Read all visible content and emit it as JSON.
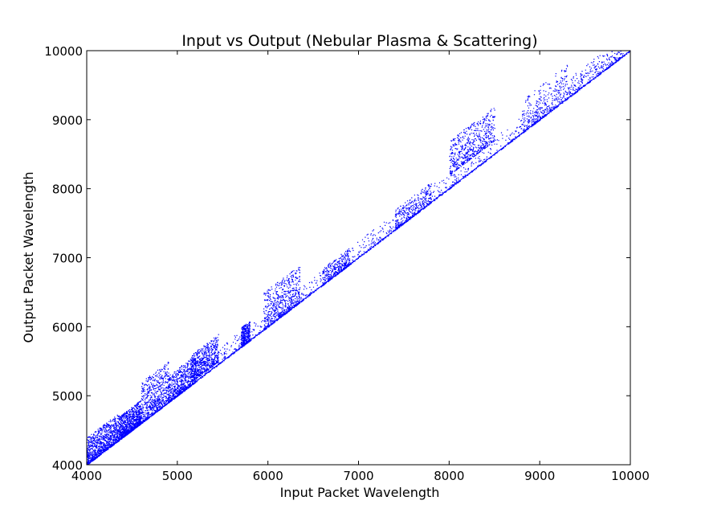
{
  "chart_data": {
    "type": "scatter",
    "title": "Input vs Output (Nebular Plasma & Scattering)",
    "xlabel": "Input Packet Wavelength",
    "ylabel": "Output Packet Wavelength",
    "xlim": [
      4000,
      10000
    ],
    "ylim": [
      4000,
      10000
    ],
    "xticks": [
      4000,
      5000,
      6000,
      7000,
      8000,
      9000,
      10000
    ],
    "yticks": [
      4000,
      5000,
      6000,
      7000,
      8000,
      9000,
      10000
    ],
    "x_tick_labels": [
      "4000",
      "5000",
      "6000",
      "7000",
      "8000",
      "9000",
      "10000"
    ],
    "y_tick_labels": [
      "4000",
      "5000",
      "6000",
      "7000",
      "8000",
      "9000",
      "10000"
    ],
    "grid": false,
    "legend": "none",
    "color": "#0000ff",
    "identity_line": {
      "x": [
        4000,
        10000
      ],
      "y": [
        4000,
        10000
      ]
    },
    "clusters": [
      {
        "x_range": [
          4000,
          4350
        ],
        "y_offset_range": [
          0,
          400
        ],
        "density": "very high"
      },
      {
        "x_range": [
          4350,
          4600
        ],
        "y_offset_range": [
          0,
          350
        ],
        "density": "very high"
      },
      {
        "x_range": [
          4600,
          4900
        ],
        "y_offset_range": [
          0,
          600
        ],
        "density": "high"
      },
      {
        "x_range": [
          4900,
          5200
        ],
        "y_offset_range": [
          0,
          400
        ],
        "density": "high"
      },
      {
        "x_range": [
          5150,
          5450
        ],
        "y_offset_range": [
          50,
          450
        ],
        "density": "high"
      },
      {
        "x_range": [
          5700,
          5800
        ],
        "y_offset_range": [
          0,
          300
        ],
        "density": "medium"
      },
      {
        "x_range": [
          5950,
          6350
        ],
        "y_offset_range": [
          0,
          550
        ],
        "density": "high"
      },
      {
        "x_range": [
          6600,
          6900
        ],
        "y_offset_range": [
          0,
          250
        ],
        "density": "medium"
      },
      {
        "x_range": [
          7400,
          7800
        ],
        "y_offset_range": [
          0,
          300
        ],
        "density": "medium"
      },
      {
        "x_range": [
          8000,
          8500
        ],
        "y_offset_range": [
          200,
          700
        ],
        "density": "high"
      },
      {
        "x_range": [
          8800,
          9300
        ],
        "y_offset_range": [
          0,
          500
        ],
        "density": "medium"
      },
      {
        "x_range": [
          9300,
          9900
        ],
        "y_offset_range": [
          0,
          300
        ],
        "density": "low"
      }
    ]
  }
}
